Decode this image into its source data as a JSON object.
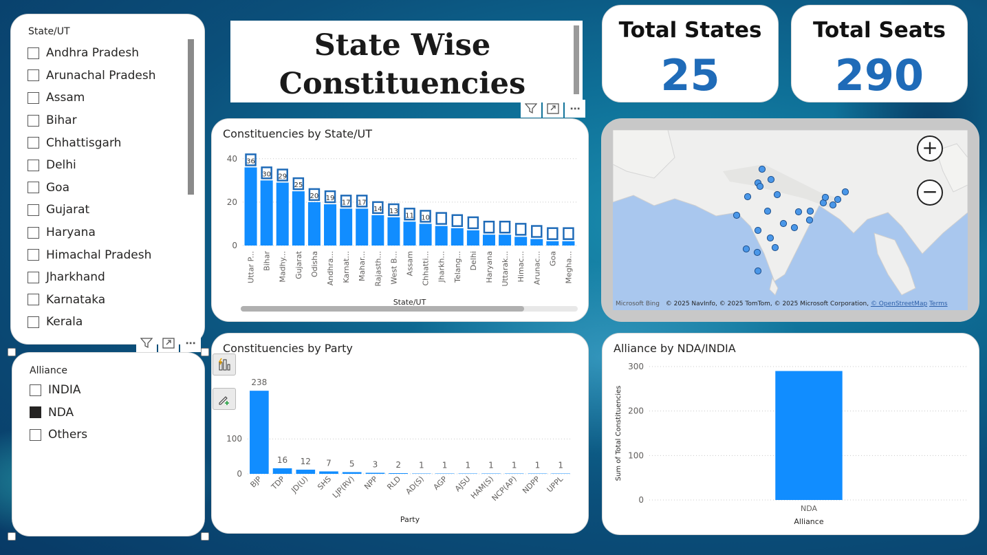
{
  "state_slicer": {
    "header": "State/UT",
    "items": [
      {
        "label": "Andhra Pradesh",
        "checked": false
      },
      {
        "label": "Arunachal Pradesh",
        "checked": false
      },
      {
        "label": "Assam",
        "checked": false
      },
      {
        "label": "Bihar",
        "checked": false
      },
      {
        "label": "Chhattisgarh",
        "checked": false
      },
      {
        "label": "Delhi",
        "checked": false
      },
      {
        "label": "Goa",
        "checked": false
      },
      {
        "label": "Gujarat",
        "checked": false
      },
      {
        "label": "Haryana",
        "checked": false
      },
      {
        "label": "Himachal Pradesh",
        "checked": false
      },
      {
        "label": "Jharkhand",
        "checked": false
      },
      {
        "label": "Karnataka",
        "checked": false
      },
      {
        "label": "Kerala",
        "checked": false
      }
    ]
  },
  "alliance_slicer": {
    "header": "Alliance",
    "items": [
      {
        "label": "INDIA",
        "checked": false
      },
      {
        "label": "NDA",
        "checked": true
      },
      {
        "label": "Others",
        "checked": false
      }
    ]
  },
  "title": {
    "line1": "State Wise",
    "line2": "Constituencies"
  },
  "kpis": {
    "states_label": "Total States",
    "states_value": "25",
    "seats_label": "Total Seats",
    "seats_value": "290"
  },
  "map": {
    "zoom_in": "+",
    "zoom_out": "−",
    "bing_label": "Microsoft Bing",
    "attribution": "© 2025 NavInfo, © 2025 TomTom, © 2025 Microsoft Corporation,",
    "osm_link": "© OpenStreetMap",
    "terms_link": "Terms"
  },
  "colors": {
    "bar": "#118DFF",
    "kpi": "#1f6bb8"
  },
  "icons": {
    "filter": "filter-icon",
    "focus": "focus-mode-icon",
    "more": "more-options-icon"
  },
  "chart_data": [
    {
      "type": "bar",
      "title": "Constituencies by State/UT",
      "xlabel": "State/UT",
      "ylabel": "",
      "ylim": [
        0,
        45
      ],
      "yticks": [
        0,
        20,
        40
      ],
      "categories": [
        "Uttar P...",
        "Bihar",
        "Madhy...",
        "Gujarat",
        "Odisha",
        "Andhra...",
        "Karnat...",
        "Mahar...",
        "Rajasth...",
        "West B...",
        "Assam",
        "Chhatti...",
        "Jharkh...",
        "Telang...",
        "Delhi",
        "Haryana",
        "Uttarak...",
        "Himac...",
        "Arunac...",
        "Goa",
        "Megha..."
      ],
      "values": [
        36,
        30,
        29,
        25,
        20,
        19,
        17,
        17,
        14,
        13,
        11,
        10,
        9,
        8,
        7,
        5,
        5,
        4,
        3,
        2,
        2
      ],
      "data_labels": [
        "36",
        "30",
        "29",
        "25",
        "20",
        "19",
        "17",
        "17",
        "14",
        "13",
        "11",
        "10",
        "",
        "",
        "",
        "",
        "",
        "",
        "",
        "",
        ""
      ]
    },
    {
      "type": "bar",
      "title": "Constituencies by Party",
      "xlabel": "Party",
      "ylabel": "",
      "ylim": [
        0,
        260
      ],
      "yticks": [
        0,
        100
      ],
      "categories": [
        "BJP",
        "TDP",
        "JD(U)",
        "SHS",
        "LJP(RV)",
        "NPP",
        "RLD",
        "AD(S)",
        "AGP",
        "AJSU",
        "HAM(S)",
        "NCP(AP)",
        "NDPP",
        "UPPL"
      ],
      "values": [
        238,
        16,
        12,
        7,
        5,
        3,
        2,
        1,
        1,
        1,
        1,
        1,
        1,
        1
      ],
      "data_labels": [
        "238",
        "16",
        "12",
        "7",
        "5",
        "3",
        "2",
        "1",
        "1",
        "1",
        "1",
        "1",
        "1",
        "1"
      ]
    },
    {
      "type": "bar",
      "title": "Alliance by NDA/INDIA",
      "xlabel": "Alliance",
      "ylabel": "Sum of Total Constituencies",
      "ylim": [
        0,
        300
      ],
      "yticks": [
        0,
        100,
        200,
        300
      ],
      "categories": [
        "NDA"
      ],
      "values": [
        290
      ],
      "data_labels": []
    }
  ]
}
